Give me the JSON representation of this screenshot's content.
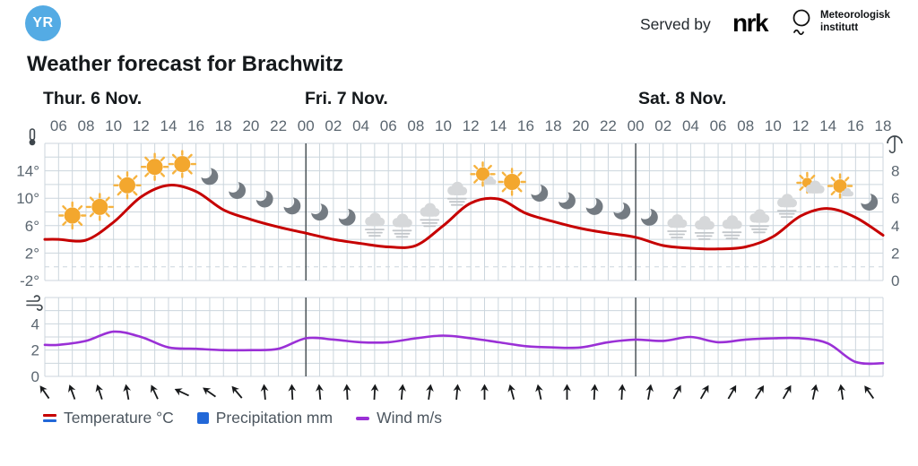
{
  "header": {
    "logo": "YR",
    "served_by": "Served by",
    "nrk": "nrk",
    "met_line1": "Meteorologisk",
    "met_line2": "institutt"
  },
  "title": "Weather forecast for Brachwitz",
  "colors": {
    "temperature": "#c60000",
    "precipitation": "#2268d8",
    "wind": "#9a30d6",
    "grid": "#ccd6dd",
    "divider": "#40484d",
    "axis_text": "#5b6670",
    "text_dark": "#15191c",
    "sun": "#f3a72e",
    "sun_ray": "#f6b33f",
    "cloud": "#d6d8da",
    "fog_line": "#c2c6ca",
    "moon": "#747b82",
    "arrow": "#17191b",
    "icon_stroke": "#3e464c",
    "logo_blue": "#54abe4"
  },
  "chart_data": {
    "type": "line",
    "title": "Weather forecast for Brachwitz",
    "days": [
      {
        "label": "Thur. 6 Nov.",
        "tick_range": [
          0,
          8
        ]
      },
      {
        "label": "Fri. 7 Nov.",
        "tick_range": [
          9,
          20
        ]
      },
      {
        "label": "Sat. 8 Nov.",
        "tick_range": [
          21,
          30
        ]
      }
    ],
    "x_tick_labels": [
      "06",
      "08",
      "10",
      "12",
      "14",
      "16",
      "18",
      "20",
      "22",
      "00",
      "02",
      "04",
      "06",
      "08",
      "10",
      "12",
      "14",
      "16",
      "18",
      "20",
      "22",
      "00",
      "02",
      "04",
      "06",
      "08",
      "10",
      "12",
      "14",
      "16",
      "18"
    ],
    "day_divider_tick_indexes": [
      9,
      21
    ],
    "temperature_axis": {
      "icon": "thermometer",
      "unit": "°C",
      "tick_labels": [
        "14°",
        "10°",
        "6°",
        "2°",
        "-2°"
      ],
      "tick_values": [
        14,
        10,
        6,
        2,
        -2
      ],
      "range": [
        -2,
        18
      ],
      "zero_line_dashed": true
    },
    "precipitation_axis": {
      "icon": "umbrella",
      "unit": "mm",
      "tick_labels": [
        "8",
        "6",
        "4",
        "2",
        "0"
      ],
      "tick_values": [
        8,
        6,
        4,
        2,
        0
      ],
      "range": [
        0,
        10
      ]
    },
    "wind_axis": {
      "icon": "wind",
      "unit": "m/s",
      "tick_labels": [
        "4",
        "2",
        "0"
      ],
      "tick_values": [
        4,
        2,
        0
      ],
      "range": [
        0,
        6
      ]
    },
    "series": [
      {
        "name": "Temperature °C",
        "unit": "°C",
        "values": [
          4.0,
          3.9,
          6.5,
          10.2,
          11.9,
          11.0,
          8.3,
          6.9,
          5.8,
          4.9,
          4.0,
          3.4,
          2.9,
          3.1,
          6.0,
          9.3,
          9.9,
          7.8,
          6.6,
          5.6,
          4.9,
          4.3,
          3.1,
          2.7,
          2.6,
          2.9,
          4.4,
          7.4,
          8.5,
          7.2,
          4.6
        ]
      },
      {
        "name": "Precipitation mm",
        "unit": "mm",
        "values": [
          0,
          0,
          0,
          0,
          0,
          0,
          0,
          0,
          0,
          0,
          0,
          0,
          0,
          0,
          0,
          0,
          0,
          0,
          0,
          0,
          0,
          0,
          0,
          0,
          0,
          0,
          0,
          0,
          0,
          0,
          0
        ]
      },
      {
        "name": "Wind m/s",
        "unit": "m/s",
        "values": [
          2.4,
          2.7,
          3.4,
          3.0,
          2.2,
          2.1,
          2.0,
          2.0,
          2.1,
          2.9,
          2.8,
          2.6,
          2.6,
          2.9,
          3.1,
          2.9,
          2.6,
          2.3,
          2.2,
          2.2,
          2.6,
          2.8,
          2.7,
          3.0,
          2.6,
          2.8,
          2.9,
          2.9,
          2.5,
          1.1,
          1.0
        ]
      }
    ],
    "weather_symbols": [
      "sun",
      "sun",
      "sun",
      "sun",
      "sun",
      "moon",
      "moon",
      "moon",
      "moon",
      "moon",
      "moon",
      "fog",
      "fog",
      "fog",
      "fog",
      "sun-cloud",
      "sun",
      "moon",
      "moon",
      "moon",
      "moon",
      "moon",
      "fog",
      "fog",
      "fog",
      "fog",
      "fog",
      "cloud-sun",
      "sun-cloud",
      "moon"
    ],
    "wind_direction_arrows_deg": [
      -35,
      -20,
      -18,
      -10,
      -25,
      -65,
      -55,
      -40,
      -5,
      -3,
      -5,
      -3,
      3,
      5,
      8,
      5,
      0,
      -15,
      -12,
      0,
      3,
      3,
      10,
      28,
      30,
      30,
      32,
      30,
      12,
      -8,
      -35
    ],
    "legend_position": "bottom",
    "grid": true
  },
  "legend": {
    "items": [
      {
        "label": "Temperature °C",
        "symbol": "temperature"
      },
      {
        "label": "Precipitation mm",
        "symbol": "precipitation"
      },
      {
        "label": "Wind m/s",
        "symbol": "wind"
      }
    ]
  }
}
